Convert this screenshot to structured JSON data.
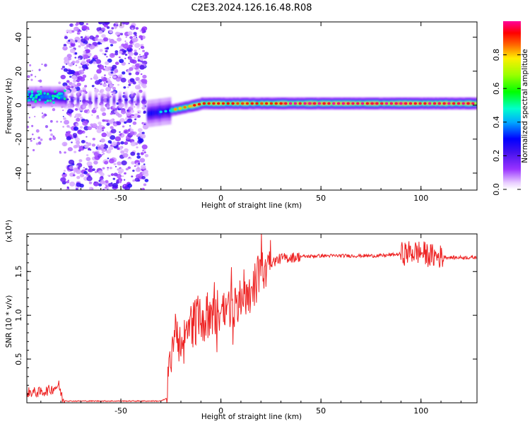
{
  "title": "C2E3.2024.126.16.48.R08",
  "chart_data": [
    {
      "type": "heatmap",
      "xlabel": "Height of straight line (km)",
      "ylabel": "Frequency (Hz)",
      "xlim": [
        -97,
        128
      ],
      "ylim": [
        -50,
        49
      ],
      "xticks": [
        -50,
        0,
        50,
        100
      ],
      "yticks": [
        -40,
        -20,
        0,
        20,
        40
      ],
      "colorbar": {
        "label": "Normalized spectral amplitude",
        "range": [
          0.0,
          1.0
        ],
        "ticks": [
          "0.0",
          "0.2",
          "0.4",
          "0.6",
          "0.8"
        ],
        "colormap": "rainbow (violet → blue → cyan → green → yellow → red → magenta)"
      },
      "features": [
        {
          "region": "x -97 to -78",
          "frequency_center_hz": 5,
          "amplitude": "0.3-0.5"
        },
        {
          "region": "x -78 to -37",
          "description": "broadband scattered noise across full frequency range",
          "amplitude": "0.05-0.25"
        },
        {
          "region": "x -37 to -25",
          "frequency_center_hz": -5,
          "amplitude": "0.2-0.5"
        },
        {
          "region": "x -25 to 128",
          "frequency_center_hz": 1,
          "amplitude": "0.6-1.0"
        }
      ]
    },
    {
      "type": "line",
      "xlabel": "Height of straight line (km)",
      "ylabel": "SNR (10 * v/v)",
      "multiplier": "(x10⁴)",
      "xlim": [
        -97,
        128
      ],
      "ylim": [
        0,
        1.93
      ],
      "xticks": [
        -50,
        0,
        50,
        100
      ],
      "yticks": [
        "0.5",
        "1.0",
        "1.5"
      ],
      "series": [
        {
          "color": "#ee2222",
          "x": [
            -97,
            -90,
            -85,
            -81,
            -79,
            -76,
            -70,
            -60,
            -50,
            -40,
            -30,
            -27,
            -25,
            -22,
            -20,
            -15,
            -10,
            -5,
            0,
            5,
            10,
            15,
            20,
            25,
            30,
            40,
            50,
            60,
            70,
            80,
            90,
            95,
            100,
            105,
            110,
            115,
            120,
            128
          ],
          "y": [
            0.12,
            0.12,
            0.15,
            0.2,
            0.03,
            0.02,
            0.02,
            0.02,
            0.02,
            0.02,
            0.02,
            0.05,
            0.6,
            0.9,
            0.6,
            0.9,
            0.95,
            1.0,
            1.05,
            1.1,
            1.15,
            1.3,
            1.5,
            1.6,
            1.65,
            1.67,
            1.68,
            1.68,
            1.68,
            1.68,
            1.7,
            1.72,
            1.72,
            1.68,
            1.67,
            1.66,
            1.66,
            1.66
          ]
        }
      ]
    }
  ]
}
